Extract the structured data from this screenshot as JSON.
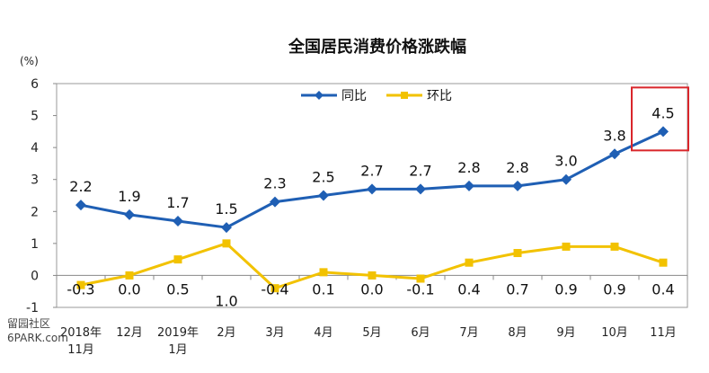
{
  "chart_data": {
    "type": "line",
    "title": "全国居民消费价格涨跌幅",
    "unit": "(%)",
    "ylim": [
      -1,
      6
    ],
    "yticks": [
      "-1",
      "0",
      "1",
      "2",
      "3",
      "4",
      "5",
      "6"
    ],
    "categories": [
      {
        "line1": "2018年",
        "line2": "11月"
      },
      {
        "line1": "12月",
        "line2": ""
      },
      {
        "line1": "2019年",
        "line2": "1月"
      },
      {
        "line1": "2月",
        "line2": ""
      },
      {
        "line1": "3月",
        "line2": ""
      },
      {
        "line1": "4月",
        "line2": ""
      },
      {
        "line1": "5月",
        "line2": ""
      },
      {
        "line1": "6月",
        "line2": ""
      },
      {
        "line1": "7月",
        "line2": ""
      },
      {
        "line1": "8月",
        "line2": ""
      },
      {
        "line1": "9月",
        "line2": ""
      },
      {
        "line1": "10月",
        "line2": ""
      },
      {
        "line1": "11月",
        "line2": ""
      }
    ],
    "series": [
      {
        "name": "同比",
        "color": "#1f5fb4",
        "values": [
          2.2,
          1.9,
          1.7,
          1.5,
          2.3,
          2.5,
          2.7,
          2.7,
          2.8,
          2.8,
          3.0,
          3.8,
          4.5
        ],
        "labels": [
          "2.2",
          "1.9",
          "1.7",
          "1.5",
          "2.3",
          "2.5",
          "2.7",
          "2.7",
          "2.8",
          "2.8",
          "3.0",
          "3.8",
          "4.5"
        ]
      },
      {
        "name": "环比",
        "color": "#f2c200",
        "values": [
          -0.3,
          0.0,
          0.5,
          1.0,
          -0.4,
          0.1,
          0.0,
          -0.1,
          0.4,
          0.7,
          0.9,
          0.9,
          0.4
        ],
        "labels": [
          "-0.3",
          "0.0",
          "0.5",
          "1.0",
          "-0.4",
          "0.1",
          "0.0",
          "-0.1",
          "0.4",
          "0.7",
          "0.9",
          "0.9",
          "0.4"
        ]
      }
    ],
    "highlight": {
      "series": 0,
      "index": 12,
      "color": "#d9262b"
    },
    "grid": false,
    "legend": "top-center"
  },
  "watermark": {
    "glyphs": "留园社区",
    "site": "6PARK.com"
  }
}
